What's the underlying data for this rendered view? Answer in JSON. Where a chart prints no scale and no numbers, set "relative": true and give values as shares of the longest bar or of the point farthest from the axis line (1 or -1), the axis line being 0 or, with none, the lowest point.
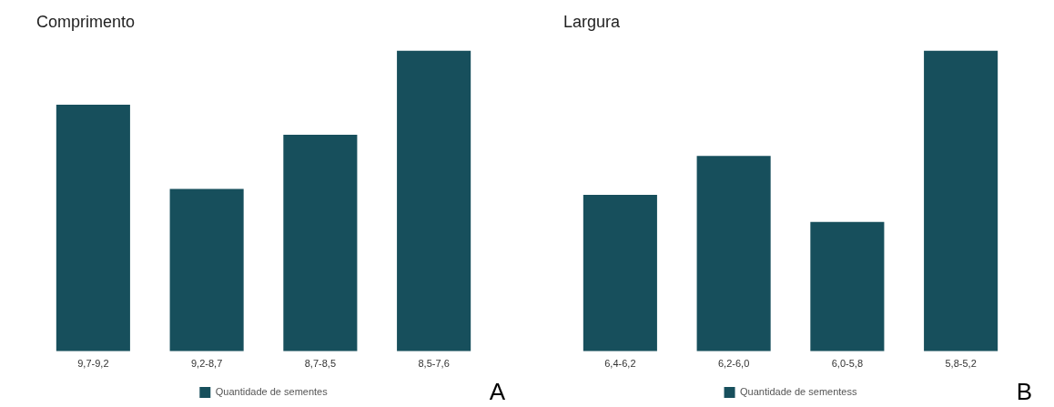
{
  "chart_data": [
    {
      "type": "bar",
      "title": "Comprimento",
      "categories": [
        "9,7-9,2",
        "9,2-8,7",
        "8,7-8,5",
        "8,5-7,6"
      ],
      "relative": true,
      "legend": "bottom",
      "grid": false,
      "annotations": [
        "A"
      ],
      "series": [
        {
          "name": "Quantidade de sementes",
          "color": "#174f5c",
          "values": [
            0.82,
            0.54,
            0.72,
            1
          ]
        }
      ]
    },
    {
      "type": "bar",
      "title": "Largura",
      "categories": [
        "6,4-6,2",
        "6,2-6,0",
        "6,0-5,8",
        "5,8-5,2"
      ],
      "relative": true,
      "legend": "bottom",
      "grid": false,
      "annotations": [
        "B"
      ],
      "series": [
        {
          "name": "Quantidade de sementess",
          "color": "#174f5c",
          "values": [
            0.52,
            0.65,
            0.43,
            1
          ]
        }
      ]
    }
  ]
}
